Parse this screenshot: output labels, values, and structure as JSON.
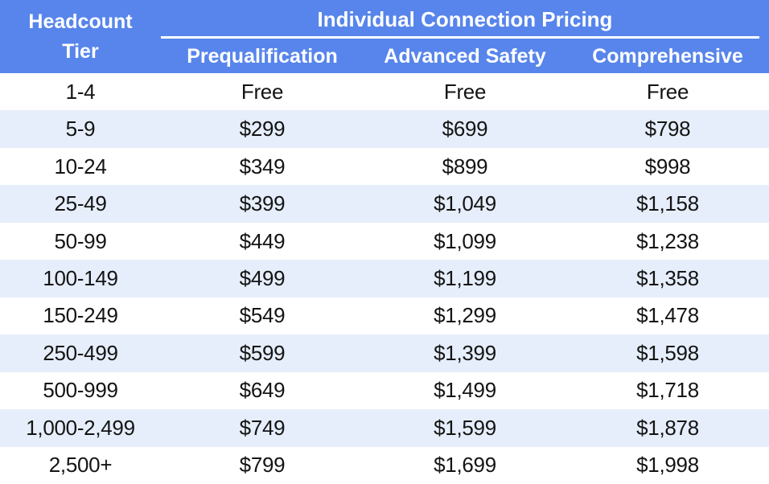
{
  "chart_data": {
    "type": "table",
    "title": "Individual Connection Pricing",
    "row_header_label": "Headcount Tier",
    "row_header_lines": [
      "Headcount",
      "Tier"
    ],
    "columns": [
      "Prequalification",
      "Advanced Safety",
      "Comprehensive"
    ],
    "categories": [
      "1-4",
      "5-9",
      "10-24",
      "25-49",
      "50-99",
      "100-149",
      "150-249",
      "250-499",
      "500-999",
      "1,000-2,499",
      "2,500+"
    ],
    "series": [
      {
        "name": "Prequalification",
        "values": [
          "Free",
          "$299",
          "$349",
          "$399",
          "$449",
          "$499",
          "$549",
          "$599",
          "$649",
          "$749",
          "$799"
        ]
      },
      {
        "name": "Advanced Safety",
        "values": [
          "Free",
          "$699",
          "$899",
          "$1,049",
          "$1,099",
          "$1,199",
          "$1,299",
          "$1,399",
          "$1,499",
          "$1,599",
          "$1,699"
        ]
      },
      {
        "name": "Comprehensive",
        "values": [
          "Free",
          "$798",
          "$998",
          "$1,158",
          "$1,238",
          "$1,358",
          "$1,478",
          "$1,598",
          "$1,718",
          "$1,878",
          "$1,998"
        ]
      }
    ],
    "layout": {
      "legend": "none",
      "grid": "off",
      "striped_rows": true,
      "first_striped_row_index": 1
    }
  },
  "colors": {
    "header_bg": "#5785EB",
    "stripe_bg": "#E6EEFB",
    "header_text": "#FFFFFF",
    "body_text": "#141414",
    "row_bg": "#FFFFFF"
  }
}
